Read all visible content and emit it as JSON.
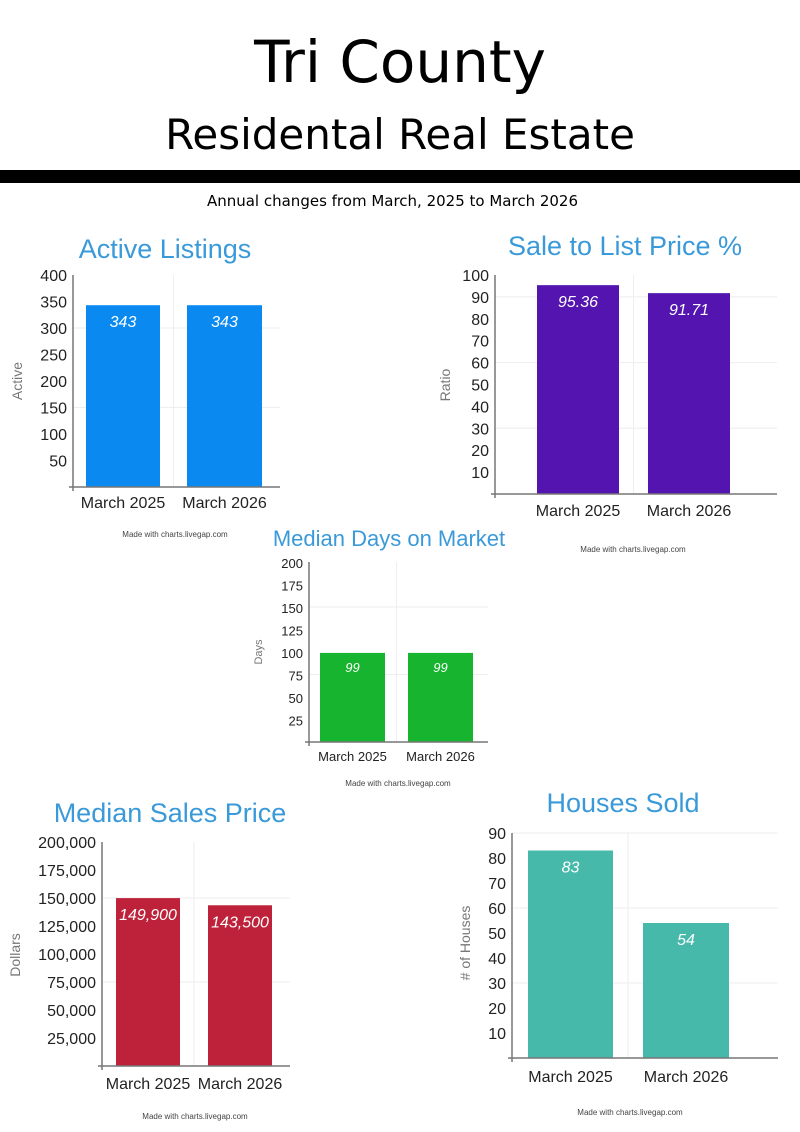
{
  "header": {
    "title": "Tri County",
    "subtitle": "Residental Real Estate",
    "caption": "Annual changes from March, 2025 to March 2026"
  },
  "chart_data": [
    {
      "type": "bar",
      "title": "Active Listings",
      "ylabel": "Active",
      "categories": [
        "March 2025",
        "March 2026"
      ],
      "values": [
        343,
        343
      ],
      "value_labels": [
        "343",
        "343"
      ],
      "ylim": [
        0,
        400
      ],
      "yticks": [
        "50",
        "100",
        "150",
        "200",
        "250",
        "300",
        "350",
        "400"
      ],
      "tick_values": [
        50,
        100,
        150,
        200,
        250,
        300,
        350,
        400
      ],
      "color": "#0a8af0",
      "credit": "Made with charts.livegap.com"
    },
    {
      "type": "bar",
      "title": "Sale to List Price %",
      "ylabel": "Ratio",
      "categories": [
        "March 2025",
        "March 2026"
      ],
      "values": [
        95.36,
        91.71
      ],
      "value_labels": [
        "95.36",
        "91.71"
      ],
      "ylim": [
        0,
        100
      ],
      "yticks": [
        "10",
        "20",
        "30",
        "40",
        "50",
        "60",
        "70",
        "80",
        "90",
        "100"
      ],
      "tick_values": [
        10,
        20,
        30,
        40,
        50,
        60,
        70,
        80,
        90,
        100
      ],
      "color": "#5314b0",
      "credit": "Made with charts.livegap.com"
    },
    {
      "type": "bar",
      "title": "Median Days on Market",
      "ylabel": "Days",
      "categories": [
        "March 2025",
        "March 2026"
      ],
      "values": [
        99,
        99
      ],
      "value_labels": [
        "99",
        "99"
      ],
      "ylim": [
        0,
        200
      ],
      "yticks": [
        "25",
        "50",
        "75",
        "100",
        "125",
        "150",
        "175",
        "200"
      ],
      "tick_values": [
        25,
        50,
        75,
        100,
        125,
        150,
        175,
        200
      ],
      "color": "#17b52f",
      "credit": "Made with charts.livegap.com"
    },
    {
      "type": "bar",
      "title": "Median Sales Price",
      "ylabel": "Dollars",
      "categories": [
        "March 2025",
        "March 2026"
      ],
      "values": [
        149900,
        143500
      ],
      "value_labels": [
        "149,900",
        "143,500"
      ],
      "ylim": [
        0,
        200000
      ],
      "yticks": [
        "25,000",
        "50,000",
        "75,000",
        "100,000",
        "125,000",
        "150,000",
        "175,000",
        "200,000"
      ],
      "tick_values": [
        25000,
        50000,
        75000,
        100000,
        125000,
        150000,
        175000,
        200000
      ],
      "color": "#be223a",
      "credit": "Made with charts.livegap.com"
    },
    {
      "type": "bar",
      "title": "Houses Sold",
      "ylabel": "# of Houses",
      "categories": [
        "March 2025",
        "March 2026"
      ],
      "values": [
        83,
        54
      ],
      "value_labels": [
        "83",
        "54"
      ],
      "ylim": [
        0,
        90
      ],
      "yticks": [
        "10",
        "20",
        "30",
        "40",
        "50",
        "60",
        "70",
        "80",
        "90"
      ],
      "tick_values": [
        10,
        20,
        30,
        40,
        50,
        60,
        70,
        80,
        90
      ],
      "color": "#46b9ab",
      "credit": "Made with charts.livegap.com"
    }
  ]
}
